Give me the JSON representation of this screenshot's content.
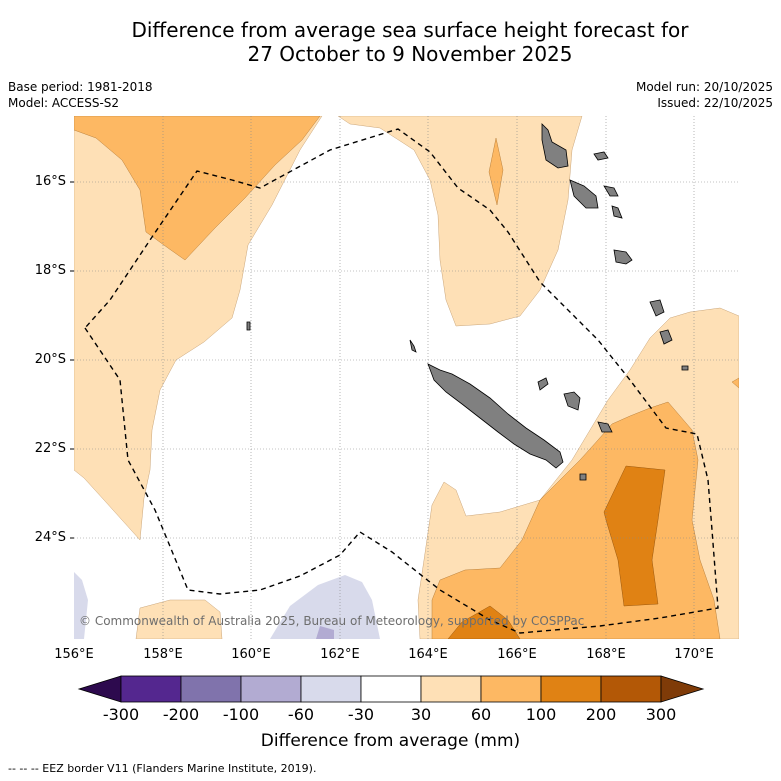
{
  "title_line1": "Difference from average sea surface height forecast for",
  "title_line2": "27 October to 9 November 2025",
  "meta_left": {
    "base_period": "Base period: 1981-2018",
    "model": "Model: ACCESS-S2"
  },
  "meta_right": {
    "model_run": "Model run: 20/10/2025",
    "issued": "Issued: 22/10/2025"
  },
  "lat_labels": [
    "16°S",
    "18°S",
    "20°S",
    "22°S",
    "24°S"
  ],
  "lon_labels": [
    "156°E",
    "158°E",
    "160°E",
    "162°E",
    "164°E",
    "166°E",
    "168°E",
    "170°E"
  ],
  "copyright": "© Commonwealth of Australia 2025, Bureau of Meteorology, supported by COSPPac",
  "colorbar": {
    "title": "Difference from average (mm)",
    "ticks": [
      "-300",
      "-200",
      "-100",
      "-60",
      "-30",
      "30",
      "60",
      "100",
      "200",
      "300"
    ],
    "colors": [
      "#2d0a4e",
      "#54278f",
      "#8073ac",
      "#b2abd2",
      "#d8daeb",
      "#ffffff",
      "#fee0b6",
      "#fdb863",
      "#e08214",
      "#b35806",
      "#7f3b08"
    ]
  },
  "footer": "-- -- -- EEZ border V11 (Flanders Marine Institute, 2019)."
}
